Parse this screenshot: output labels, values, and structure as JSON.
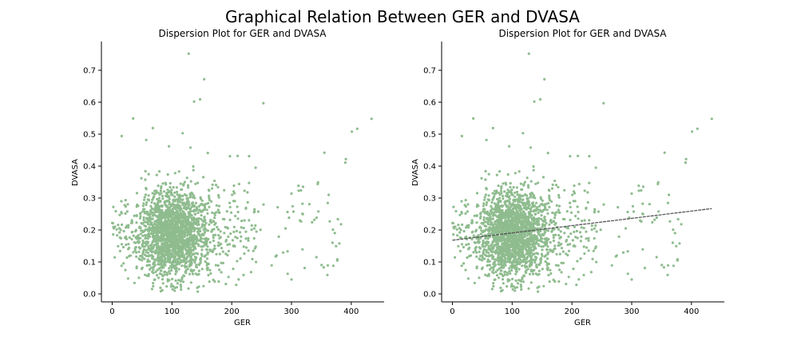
{
  "figure": {
    "suptitle": "Graphical Relation Between GER and DVASA",
    "point_color": "#8fbc8f",
    "line_color": "#555555"
  },
  "chart_data": [
    {
      "type": "scatter",
      "title": "Dispersion Plot for GER and DVASA",
      "xlabel": "GER",
      "ylabel": "DVASA",
      "xlim": [
        -18,
        455
      ],
      "ylim": [
        -0.025,
        0.79
      ],
      "xticks": [
        0,
        100,
        200,
        300,
        400
      ],
      "yticks": [
        0.0,
        0.1,
        0.2,
        0.3,
        0.4,
        0.5,
        0.6,
        0.7
      ],
      "grid": false,
      "spines": "left-bottom",
      "regression_line": null,
      "outliers": [
        {
          "x": 128,
          "y": 0.752
        },
        {
          "x": 154,
          "y": 0.672
        },
        {
          "x": 147,
          "y": 0.609
        },
        {
          "x": 137,
          "y": 0.602
        },
        {
          "x": 253,
          "y": 0.597
        },
        {
          "x": 35,
          "y": 0.549
        },
        {
          "x": 434,
          "y": 0.548
        },
        {
          "x": 68,
          "y": 0.519
        },
        {
          "x": 410,
          "y": 0.517
        },
        {
          "x": 401,
          "y": 0.508
        },
        {
          "x": 118,
          "y": 0.503
        },
        {
          "x": 16,
          "y": 0.494
        },
        {
          "x": 57,
          "y": 0.482
        },
        {
          "x": 95,
          "y": 0.462
        },
        {
          "x": 131,
          "y": 0.458
        },
        {
          "x": 355,
          "y": 0.442
        },
        {
          "x": 160,
          "y": 0.441
        },
        {
          "x": 197,
          "y": 0.431
        },
        {
          "x": 210,
          "y": 0.432
        },
        {
          "x": 229,
          "y": 0.431
        },
        {
          "x": 391,
          "y": 0.422
        },
        {
          "x": 390,
          "y": 0.411
        },
        {
          "x": 240,
          "y": 0.395
        },
        {
          "x": 300,
          "y": 0.314
        },
        {
          "x": 312,
          "y": 0.323
        },
        {
          "x": 330,
          "y": 0.281
        },
        {
          "x": 345,
          "y": 0.258
        },
        {
          "x": 364,
          "y": 0.227
        },
        {
          "x": 383,
          "y": 0.218
        },
        {
          "x": 380,
          "y": 0.158
        },
        {
          "x": 370,
          "y": 0.088
        },
        {
          "x": 300,
          "y": 0.045
        },
        {
          "x": 322,
          "y": 0.081
        },
        {
          "x": 275,
          "y": 0.12
        },
        {
          "x": 290,
          "y": 0.205
        }
      ]
    },
    {
      "type": "scatter",
      "title": "Dispersion Plot for GER and DVASA",
      "xlabel": "GER",
      "ylabel": "DVASA",
      "xlim": [
        -18,
        455
      ],
      "ylim": [
        -0.025,
        0.79
      ],
      "xticks": [
        0,
        100,
        200,
        300,
        400
      ],
      "yticks": [
        0.0,
        0.1,
        0.2,
        0.3,
        0.4,
        0.5,
        0.6,
        0.7
      ],
      "grid": false,
      "spines": "left-bottom",
      "regression_line": {
        "x": [
          0,
          434
        ],
        "y": [
          0.168,
          0.267
        ],
        "style": "dashed"
      },
      "outliers": [
        {
          "x": 128,
          "y": 0.752
        },
        {
          "x": 154,
          "y": 0.672
        },
        {
          "x": 147,
          "y": 0.609
        },
        {
          "x": 137,
          "y": 0.602
        },
        {
          "x": 253,
          "y": 0.597
        },
        {
          "x": 35,
          "y": 0.549
        },
        {
          "x": 434,
          "y": 0.548
        },
        {
          "x": 68,
          "y": 0.519
        },
        {
          "x": 410,
          "y": 0.517
        },
        {
          "x": 401,
          "y": 0.508
        },
        {
          "x": 118,
          "y": 0.503
        },
        {
          "x": 16,
          "y": 0.494
        },
        {
          "x": 57,
          "y": 0.482
        },
        {
          "x": 95,
          "y": 0.462
        },
        {
          "x": 131,
          "y": 0.458
        },
        {
          "x": 355,
          "y": 0.442
        },
        {
          "x": 160,
          "y": 0.441
        },
        {
          "x": 197,
          "y": 0.431
        },
        {
          "x": 210,
          "y": 0.432
        },
        {
          "x": 229,
          "y": 0.431
        },
        {
          "x": 391,
          "y": 0.422
        },
        {
          "x": 390,
          "y": 0.411
        },
        {
          "x": 240,
          "y": 0.395
        },
        {
          "x": 300,
          "y": 0.314
        },
        {
          "x": 312,
          "y": 0.323
        },
        {
          "x": 330,
          "y": 0.281
        },
        {
          "x": 345,
          "y": 0.258
        },
        {
          "x": 364,
          "y": 0.227
        },
        {
          "x": 383,
          "y": 0.218
        },
        {
          "x": 380,
          "y": 0.158
        },
        {
          "x": 370,
          "y": 0.088
        },
        {
          "x": 300,
          "y": 0.045
        },
        {
          "x": 322,
          "y": 0.081
        },
        {
          "x": 275,
          "y": 0.12
        },
        {
          "x": 290,
          "y": 0.205
        }
      ]
    }
  ]
}
